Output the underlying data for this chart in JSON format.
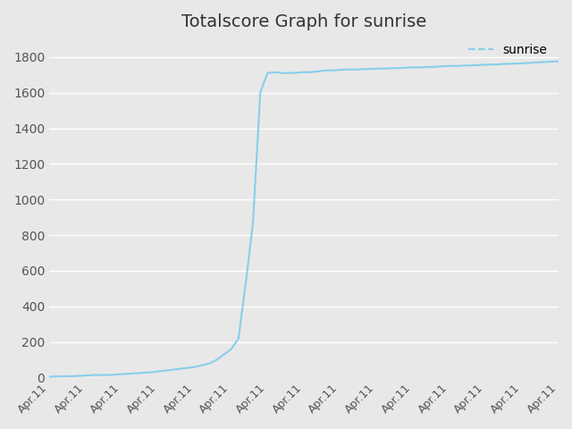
{
  "title": "Totalscore Graph for sunrise",
  "legend_label": "sunrise",
  "line_color": "#87CEEB",
  "background_color": "#E8E8E8",
  "plot_bg_color": "#E8E8E8",
  "x_values": [
    0,
    1,
    2,
    3,
    4,
    5,
    6,
    7,
    8,
    9,
    10,
    11,
    12,
    13,
    14,
    15,
    16,
    17,
    18,
    19,
    20,
    21,
    22,
    23,
    24,
    25,
    26,
    27,
    28,
    29,
    30,
    31,
    32,
    33,
    34,
    35,
    36,
    37,
    38,
    39,
    40,
    41,
    42,
    43,
    44,
    45,
    46,
    47,
    48,
    49,
    50,
    51,
    52,
    53,
    54,
    55,
    56,
    57,
    58,
    59,
    60,
    61,
    62,
    63,
    64,
    65,
    66,
    67,
    68,
    69,
    70
  ],
  "y_values": [
    5,
    7,
    8,
    8,
    10,
    12,
    15,
    15,
    15,
    17,
    20,
    22,
    25,
    28,
    30,
    35,
    40,
    45,
    50,
    55,
    60,
    70,
    80,
    100,
    130,
    160,
    220,
    530,
    870,
    1600,
    1710,
    1715,
    1710,
    1710,
    1712,
    1715,
    1715,
    1720,
    1725,
    1725,
    1728,
    1730,
    1730,
    1732,
    1733,
    1735,
    1735,
    1737,
    1738,
    1740,
    1742,
    1742,
    1744,
    1745,
    1748,
    1750,
    1750,
    1752,
    1753,
    1755,
    1757,
    1758,
    1760,
    1762,
    1763,
    1765,
    1767,
    1770,
    1772,
    1774,
    1776
  ],
  "x_tick_positions": [
    0,
    5,
    10,
    15,
    20,
    25,
    30,
    35,
    40,
    45,
    50,
    55,
    60,
    65,
    70
  ],
  "x_tick_labels": [
    "Apr.11",
    "Apr.11",
    "Apr.11",
    "Apr.11",
    "Apr.11",
    "Apr.11",
    "Apr.11",
    "Apr.11",
    "Apr.11",
    "Apr.11",
    "Apr.11",
    "Apr.11",
    "Apr.11",
    "Apr.11",
    "Apr.11"
  ],
  "ylim": [
    0,
    1900
  ],
  "yticks": [
    0,
    200,
    400,
    600,
    800,
    1000,
    1200,
    1400,
    1600,
    1800
  ],
  "ylabel_fontsize": 10,
  "title_fontsize": 14,
  "tick_fontsize": 9,
  "legend_fontsize": 10,
  "line_width": 1.5,
  "grid_color": "#FFFFFF",
  "grid_linewidth": 1.0,
  "legend_line_color": "#87CEEB",
  "legend_line_style": "--"
}
